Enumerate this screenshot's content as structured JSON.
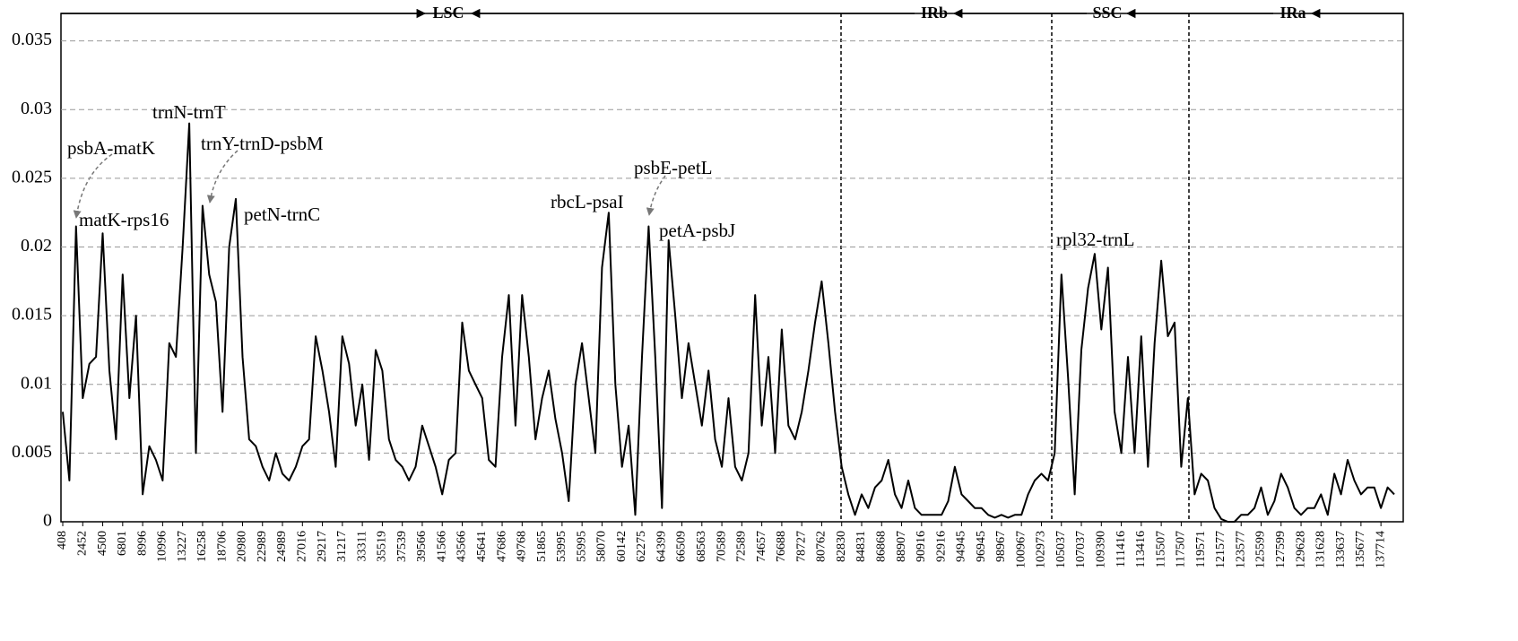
{
  "chart_data": {
    "type": "line",
    "regions": [
      "LSC",
      "IRb",
      "SSC",
      "IRa"
    ],
    "annotations": [
      "psbA-matK",
      "trnN-trnT",
      "trnY-trnD-psbM",
      "matK-rps16",
      "petN-trnC",
      "rbcL-psaI",
      "psbE-petL",
      "petA-psbJ",
      "rpl32-trnL"
    ],
    "color": "#000000",
    "ylim": [
      0,
      0.037
    ],
    "yticks": [
      0,
      0.005,
      0.01,
      0.015,
      0.02,
      0.025,
      0.03,
      0.035
    ],
    "grid": true,
    "categories": [
      "408",
      null,
      null,
      "2452",
      null,
      null,
      "4500",
      null,
      null,
      "6801",
      null,
      null,
      "8996",
      null,
      null,
      "10996",
      null,
      null,
      "13227",
      null,
      null,
      "16258",
      null,
      null,
      "18706",
      null,
      null,
      "20980",
      null,
      null,
      "22989",
      null,
      null,
      "24989",
      null,
      null,
      "27016",
      null,
      null,
      "29217",
      null,
      null,
      "31217",
      null,
      null,
      "33311",
      null,
      null,
      "35519",
      null,
      null,
      "37539",
      null,
      null,
      "39566",
      null,
      null,
      "41566",
      null,
      null,
      "43566",
      null,
      null,
      "45641",
      null,
      null,
      "47686",
      null,
      null,
      "49768",
      null,
      null,
      "51865",
      null,
      null,
      "53995",
      null,
      null,
      "55995",
      null,
      null,
      "58070",
      null,
      null,
      "60142",
      null,
      null,
      "62275",
      null,
      null,
      "64399",
      null,
      null,
      "66509",
      null,
      null,
      "68563",
      null,
      null,
      "70589",
      null,
      null,
      "72589",
      null,
      null,
      "74657",
      null,
      null,
      "76688",
      null,
      null,
      "78727",
      null,
      null,
      "80762",
      null,
      null,
      "82830",
      null,
      null,
      "84831",
      null,
      null,
      "86868",
      null,
      null,
      "88907",
      null,
      null,
      "90916",
      null,
      null,
      "92916",
      null,
      null,
      "94945",
      null,
      null,
      "96945",
      null,
      null,
      "98967",
      null,
      null,
      "100967",
      null,
      null,
      "102973",
      null,
      null,
      "105037",
      null,
      null,
      "107037",
      null,
      null,
      "109390",
      null,
      null,
      "111416",
      null,
      null,
      "113416",
      null,
      null,
      "115507",
      null,
      null,
      "117507",
      null,
      null,
      "119571",
      null,
      null,
      "121577",
      null,
      null,
      "123577",
      null,
      null,
      "125599",
      null,
      null,
      "127599",
      null,
      null,
      "129628",
      null,
      null,
      "131628",
      null,
      null,
      "133637",
      null,
      null,
      "135677",
      null,
      null,
      "137714",
      null,
      null
    ],
    "values": [
      0.008,
      0.003,
      0.0215,
      0.009,
      0.0115,
      0.012,
      0.021,
      0.011,
      0.006,
      0.018,
      0.009,
      0.015,
      0.002,
      0.0055,
      0.0045,
      0.003,
      0.013,
      0.012,
      0.02,
      0.029,
      0.005,
      0.023,
      0.018,
      0.016,
      0.008,
      0.02,
      0.0235,
      0.012,
      0.006,
      0.0055,
      0.004,
      0.003,
      0.005,
      0.0035,
      0.003,
      0.004,
      0.0055,
      0.006,
      0.0135,
      0.011,
      0.008,
      0.004,
      0.0135,
      0.0115,
      0.007,
      0.01,
      0.0045,
      0.0125,
      0.011,
      0.006,
      0.0045,
      0.004,
      0.003,
      0.004,
      0.007,
      0.0055,
      0.004,
      0.002,
      0.0045,
      0.005,
      0.0145,
      0.011,
      0.01,
      0.009,
      0.0045,
      0.004,
      0.012,
      0.0165,
      0.007,
      0.0165,
      0.012,
      0.006,
      0.009,
      0.011,
      0.0075,
      0.005,
      0.0015,
      0.01,
      0.013,
      0.009,
      0.005,
      0.0185,
      0.0225,
      0.01,
      0.004,
      0.007,
      0.0005,
      0.012,
      0.0215,
      0.012,
      0.001,
      0.0205,
      0.015,
      0.009,
      0.013,
      0.01,
      0.007,
      0.011,
      0.006,
      0.004,
      0.009,
      0.004,
      0.003,
      0.005,
      0.0165,
      0.007,
      0.012,
      0.005,
      0.014,
      0.007,
      0.006,
      0.008,
      0.011,
      0.0145,
      0.0175,
      0.013,
      0.008,
      0.004,
      0.002,
      0.0005,
      0.002,
      0.001,
      0.0025,
      0.003,
      0.0045,
      0.002,
      0.001,
      0.003,
      0.001,
      0.0005,
      0.0005,
      0.0005,
      0.0005,
      0.0015,
      0.004,
      0.002,
      0.0015,
      0.001,
      0.001,
      0.0005,
      0.0003,
      0.0005,
      0.0003,
      0.0005,
      0.0005,
      0.002,
      0.003,
      0.0035,
      0.003,
      0.005,
      0.018,
      0.0105,
      0.002,
      0.0125,
      0.017,
      0.0195,
      0.014,
      0.0185,
      0.008,
      0.005,
      0.012,
      0.005,
      0.0135,
      0.004,
      0.013,
      0.019,
      0.0135,
      0.0145,
      0.004,
      0.009,
      0.002,
      0.0035,
      0.003,
      0.001,
      0.0002,
      0,
      0,
      0.0005,
      0.0005,
      0.001,
      0.0025,
      0.0005,
      0.0015,
      0.0035,
      0.0025,
      0.001,
      0.0005,
      0.001,
      0.001,
      0.002,
      0.0005,
      0.0035,
      0.002,
      0.0045,
      0.003,
      0.002,
      0.0025,
      0.0025,
      0.001,
      0.0025,
      0.002
    ]
  }
}
